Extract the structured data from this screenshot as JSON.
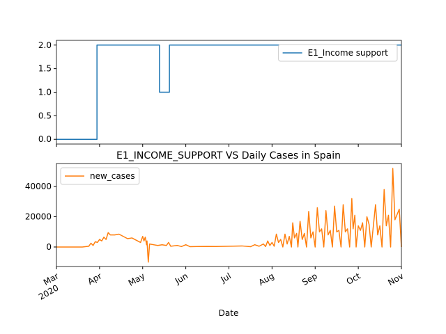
{
  "chart_data": [
    {
      "type": "line",
      "step": true,
      "x": [
        3,
        3.94,
        3.94,
        5.39,
        5.39,
        5.62,
        5.62,
        11
      ],
      "series": [
        {
          "name": "E1_Income support",
          "color": "#1f77b4",
          "values": [
            0,
            0,
            2,
            2,
            1,
            1,
            2,
            2
          ]
        }
      ],
      "xlim": [
        3,
        11
      ],
      "ylim": [
        -0.1,
        2.1
      ],
      "yticks": [
        {
          "value": 0,
          "label": "0.0"
        },
        {
          "value": 0.5,
          "label": "0.5"
        },
        {
          "value": 1,
          "label": "1.0"
        },
        {
          "value": 1.5,
          "label": "1.5"
        },
        {
          "value": 2,
          "label": "2.0"
        }
      ],
      "legend": "upper right"
    },
    {
      "type": "line",
      "title": "E1_INCOME_SUPPORT VS Daily Cases in Spain",
      "x_label": "Date",
      "x": [
        3.0,
        3.6,
        3.75,
        3.8,
        3.85,
        3.9,
        3.95,
        4.0,
        4.05,
        4.1,
        4.15,
        4.2,
        4.25,
        4.35,
        4.45,
        4.55,
        4.65,
        4.75,
        4.85,
        4.95,
        5.0,
        5.03,
        5.06,
        5.09,
        5.1,
        5.13,
        5.16,
        5.25,
        5.35,
        5.45,
        5.55,
        5.6,
        5.65,
        5.8,
        5.9,
        6.0,
        6.1,
        6.3,
        6.5,
        6.7,
        7.0,
        7.3,
        7.5,
        7.6,
        7.7,
        7.8,
        7.85,
        7.9,
        7.95,
        8.0,
        8.05,
        8.1,
        8.15,
        8.2,
        8.25,
        8.3,
        8.35,
        8.4,
        8.45,
        8.48,
        8.52,
        8.57,
        8.6,
        8.65,
        8.7,
        8.75,
        8.8,
        8.85,
        8.9,
        8.95,
        9.0,
        9.05,
        9.1,
        9.15,
        9.2,
        9.25,
        9.3,
        9.35,
        9.4,
        9.45,
        9.5,
        9.55,
        9.6,
        9.65,
        9.7,
        9.75,
        9.8,
        9.85,
        9.88,
        9.92,
        9.95,
        10.0,
        10.05,
        10.1,
        10.15,
        10.2,
        10.25,
        10.3,
        10.4,
        10.45,
        10.5,
        10.55,
        10.6,
        10.65,
        10.7,
        10.75,
        10.8,
        10.85,
        10.95,
        11.0
      ],
      "series": [
        {
          "name": "new_cases",
          "color": "#ff7f0e",
          "values": [
            0,
            0,
            500,
            2500,
            1000,
            3500,
            3000,
            5000,
            4000,
            6500,
            5000,
            9500,
            8000,
            8000,
            8500,
            7000,
            5500,
            6000,
            4500,
            3000,
            7000,
            4000,
            6500,
            1500,
            4000,
            -10000,
            2000,
            1500,
            1000,
            1500,
            1000,
            3000,
            500,
            1000,
            300,
            1500,
            200,
            300,
            400,
            300,
            500,
            700,
            200,
            1500,
            500,
            2000,
            300,
            4000,
            1000,
            3000,
            500,
            8500,
            3000,
            5000,
            0,
            8500,
            2000,
            7000,
            0,
            16000,
            6000,
            9000,
            0,
            17000,
            5000,
            9000,
            0,
            23500,
            6000,
            10000,
            0,
            26000,
            10000,
            12000,
            0,
            24000,
            8000,
            11000,
            0,
            27000,
            10000,
            11000,
            0,
            28000,
            10000,
            12000,
            0,
            32000,
            12000,
            21000,
            0,
            14000,
            11000,
            16000,
            0,
            20000,
            15000,
            0,
            28000,
            8000,
            14000,
            0,
            38000,
            14000,
            21000,
            0,
            52000,
            18000,
            25000,
            0
          ]
        }
      ],
      "xlim": [
        3,
        11
      ],
      "ylim": [
        -12900,
        55200
      ],
      "yticks": [
        0,
        20000,
        40000
      ],
      "xticks": [
        {
          "value": 3,
          "label": "Mar"
        },
        {
          "value": 4,
          "label": "Apr"
        },
        {
          "value": 5,
          "label": "May"
        },
        {
          "value": 6,
          "label": "Jun"
        },
        {
          "value": 7,
          "label": "Jul"
        },
        {
          "value": 8,
          "label": "Aug"
        },
        {
          "value": 9,
          "label": "Sep"
        },
        {
          "value": 10,
          "label": "Oct"
        },
        {
          "value": 11,
          "label": "Nov"
        }
      ],
      "x_year": "2020",
      "legend": "upper left"
    }
  ]
}
